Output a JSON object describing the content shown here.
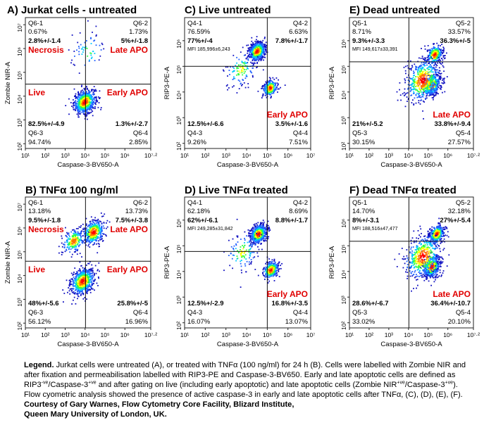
{
  "colors": {
    "red_label": "#e00000",
    "density_colors": [
      "#1010c0",
      "#2060ff",
      "#00c8ff",
      "#30ff40",
      "#ffff00",
      "#ff7000",
      "#ff0000"
    ]
  },
  "chart_data": [
    {
      "type": "scatter",
      "title": "A) Jurkat cells - untreated",
      "xlabel": "Caspase-3-BV650-A",
      "ylabel": "Zombie NIR-A",
      "x_scale": "log",
      "y_scale": "log",
      "x_ticks": [
        "10¹",
        "10²",
        "10³",
        "10⁴",
        "10⁵",
        "10⁶",
        "10⁷·²"
      ],
      "y_ticks": [
        "10²",
        "10³",
        "10⁴",
        "10⁵",
        "10⁶",
        "10⁷"
      ],
      "gate": {
        "x": 10500.0,
        "y": 32000.0
      },
      "clusters": [
        {
          "x": 9000.0,
          "y": 6000.0,
          "spread": 0.55,
          "count": 700
        },
        {
          "x": 13000.0,
          "y": 800000.0,
          "spread": 0.9,
          "count": 60
        }
      ],
      "quadrants": [
        {
          "name": "Q6-1",
          "percent": "0.67%",
          "value": "2.8%+/-1.4",
          "label": "Necrosis"
        },
        {
          "name": "Q6-2",
          "percent": "1.73%",
          "value": "5%+/-1.8",
          "label": "Late APO"
        },
        {
          "name": "Q6-3",
          "percent": "94.74%",
          "value": "82.5%+/-4.9",
          "label": "Live"
        },
        {
          "name": "Q6-4",
          "percent": "2.85%",
          "value": "1.3%+/-2.7",
          "label": "Early APO"
        }
      ],
      "mfi": ""
    },
    {
      "type": "scatter",
      "title": "B) TNFα 100 ng/ml",
      "xlabel": "Caspase-3-BV650-A",
      "ylabel": "Zombie NIR-A",
      "x_scale": "log",
      "y_scale": "log",
      "x_ticks": [
        "10¹",
        "10²",
        "10³",
        "10⁴",
        "10⁵",
        "10⁶",
        "10⁷·²"
      ],
      "y_ticks": [
        "10²",
        "10³",
        "10⁴",
        "10⁵",
        "10⁶",
        "10⁷"
      ],
      "gate": {
        "x": 10500.0,
        "y": 40000.0
      },
      "clusters": [
        {
          "x": 7000.0,
          "y": 6000.0,
          "spread": 0.6,
          "count": 650
        },
        {
          "x": 25000.0,
          "y": 700000.0,
          "spread": 0.55,
          "count": 450
        },
        {
          "x": 2500.0,
          "y": 300000.0,
          "spread": 0.55,
          "count": 220
        }
      ],
      "quadrants": [
        {
          "name": "Q6-1",
          "percent": "13.18%",
          "value": "9.5%+/-1.8",
          "label": "Necrosis"
        },
        {
          "name": "Q6-2",
          "percent": "13.73%",
          "value": "7.5%+/-3.8",
          "label": "Late APO"
        },
        {
          "name": "Q6-3",
          "percent": "56.12%",
          "value": "48%+/-5.6",
          "label": "Live"
        },
        {
          "name": "Q6-4",
          "percent": "16.96%",
          "value": "25.8%+/-5",
          "label": "Early APO"
        }
      ],
      "mfi": ""
    },
    {
      "type": "scatter",
      "title": "C) Live untreated",
      "xlabel": "Caspase-3-BV650-A",
      "ylabel": "RIP3-PE-A",
      "x_scale": "log",
      "y_scale": "log",
      "x_ticks": [
        "10¹",
        "10²",
        "10³",
        "10⁴",
        "10⁵",
        "10⁶",
        "10⁷"
      ],
      "y_ticks": [
        "10²",
        "10³",
        "10⁴",
        "10⁵",
        "10⁶"
      ],
      "gate": {
        "x": 100000.0,
        "y": 100000.0
      },
      "clusters": [
        {
          "x": 30000.0,
          "y": 400000.0,
          "spread": 0.4,
          "count": 650
        },
        {
          "x": 130000.0,
          "y": 15000.0,
          "spread": 0.35,
          "count": 260
        },
        {
          "x": 5000.0,
          "y": 80000.0,
          "spread": 0.75,
          "count": 120
        }
      ],
      "quadrants": [
        {
          "name": "Q4-1",
          "percent": "76.59%",
          "value": "77%+/-4",
          "label": ""
        },
        {
          "name": "Q4-2",
          "percent": "6.63%",
          "value": "7.8%+/-1.7",
          "label": ""
        },
        {
          "name": "Q4-3",
          "percent": "9.26%",
          "value": "12.5%+/-6.6",
          "label": ""
        },
        {
          "name": "Q4-4",
          "percent": "7.51%",
          "value": "3.5%+/-1.6",
          "label": "Early APO"
        }
      ],
      "mfi": "MFI 185,996±6,243"
    },
    {
      "type": "scatter",
      "title": "D) Live TNFα treated",
      "xlabel": "Caspase-3-BV650-A",
      "ylabel": "RIP3-PE-A",
      "x_scale": "log",
      "y_scale": "log",
      "x_ticks": [
        "10¹",
        "10²",
        "10³",
        "10⁴",
        "10⁵",
        "10⁶",
        "10⁷"
      ],
      "y_ticks": [
        "10²",
        "10³",
        "10⁴",
        "10⁵",
        "10⁶"
      ],
      "gate": {
        "x": 100000.0,
        "y": 60000.0
      },
      "clusters": [
        {
          "x": 35000.0,
          "y": 300000.0,
          "spread": 0.4,
          "count": 600
        },
        {
          "x": 140000.0,
          "y": 12000.0,
          "spread": 0.38,
          "count": 320
        },
        {
          "x": 6000.0,
          "y": 60000.0,
          "spread": 0.8,
          "count": 120
        }
      ],
      "quadrants": [
        {
          "name": "Q4-1",
          "percent": "62.18%",
          "value": "62%+/-6.1",
          "label": ""
        },
        {
          "name": "Q4-2",
          "percent": "8.69%",
          "value": "8.8%+/-1.7",
          "label": ""
        },
        {
          "name": "Q4-3",
          "percent": "16.07%",
          "value": "12.5%+/-2.9",
          "label": ""
        },
        {
          "name": "Q4-4",
          "percent": "13.07%",
          "value": "16.8%+/-3.5",
          "label": "Early APO"
        }
      ],
      "mfi": "MFI 249,285±31,842"
    },
    {
      "type": "scatter",
      "title": "E) Dead untreated",
      "xlabel": "Caspase-3-BV650-A",
      "ylabel": "RIP3-PE-A",
      "x_scale": "log",
      "y_scale": "log",
      "x_ticks": [
        "10¹",
        "10²",
        "10³",
        "10⁴",
        "10⁵",
        "10⁶",
        "10⁷·²"
      ],
      "y_ticks": [
        "10²",
        "10³",
        "10⁴",
        "10⁵",
        "10⁶"
      ],
      "gate": {
        "x": 10500.0,
        "y": 150000.0
      },
      "clusters": [
        {
          "x": 140000.0,
          "y": 20000.0,
          "spread": 0.45,
          "count": 500
        },
        {
          "x": 200000.0,
          "y": 300000.0,
          "spread": 0.4,
          "count": 300
        },
        {
          "x": 50000.0,
          "y": 30000.0,
          "spread": 0.9,
          "count": 500
        }
      ],
      "quadrants": [
        {
          "name": "Q5-1",
          "percent": "8.71%",
          "value": "9.3%+/-3.3",
          "label": ""
        },
        {
          "name": "Q5-2",
          "percent": "33.57%",
          "value": "36.3%+/-5",
          "label": ""
        },
        {
          "name": "Q5-3",
          "percent": "30.15%",
          "value": "21%+/-5.2",
          "label": ""
        },
        {
          "name": "Q5-4",
          "percent": "27.57%",
          "value": "33.8%+/-9.4",
          "label": "Late APO"
        }
      ],
      "mfi": "MFI 149,617±33,391"
    },
    {
      "type": "scatter",
      "title": "F) Dead TNFα treated",
      "xlabel": "Caspase-3-BV650-A",
      "ylabel": "RIP3-PE-A",
      "x_scale": "log",
      "y_scale": "log",
      "x_ticks": [
        "10¹",
        "10²",
        "10³",
        "10⁴",
        "10⁵",
        "10⁶",
        "10⁷·²"
      ],
      "y_ticks": [
        "10²",
        "10³",
        "10⁴",
        "10⁵",
        "10⁶"
      ],
      "gate": {
        "x": 10500.0,
        "y": 150000.0
      },
      "clusters": [
        {
          "x": 140000.0,
          "y": 16000.0,
          "spread": 0.45,
          "count": 500
        },
        {
          "x": 250000.0,
          "y": 300000.0,
          "spread": 0.38,
          "count": 420
        },
        {
          "x": 50000.0,
          "y": 40000.0,
          "spread": 0.9,
          "count": 450
        }
      ],
      "quadrants": [
        {
          "name": "Q5-1",
          "percent": "14.70%",
          "value": "8%+/-3.1",
          "label": ""
        },
        {
          "name": "Q5-2",
          "percent": "32.18%",
          "value": "27%+/-5.4",
          "label": ""
        },
        {
          "name": "Q5-3",
          "percent": "33.02%",
          "value": "28.6%+/-6.7",
          "label": ""
        },
        {
          "name": "Q5-4",
          "percent": "20.10%",
          "value": "36.4%+/-10.7",
          "label": "Late APO"
        }
      ],
      "mfi": "MFI 188,516±47,477"
    }
  ],
  "legend": {
    "heading": "Legend.",
    "s1": "Jurkat cells were untreated (A), or treated with TNFα (100 ng/ml) for 24 h (B). Cells were labelled with Zombie NIR and after fixation and permeabilisation labelled with RIP3-PE and Caspase-3-BV650. Early and late apoptotic cells are defined as RIP3",
    "sup1": "-ve",
    "s2": "/Caspase-3",
    "sup2": "+ve",
    "s3": " and after gating on live (including early apoptotic) and late apoptotic cells (Zombie NIR",
    "sup3": "+ve",
    "s4": "/Caspase-3",
    "sup4": "+ve",
    "s5": "). Flow cyometric analysis showed the presence of active caspase-3 in early and late apoptotic cells after TNFα, (C), (D), (E), (F).",
    "credit_line1": "Courtesy of Gary Warnes, Flow Cytometry Core Facility, Blizard Institute,",
    "credit_line2": "Queen Mary University of London, UK."
  }
}
